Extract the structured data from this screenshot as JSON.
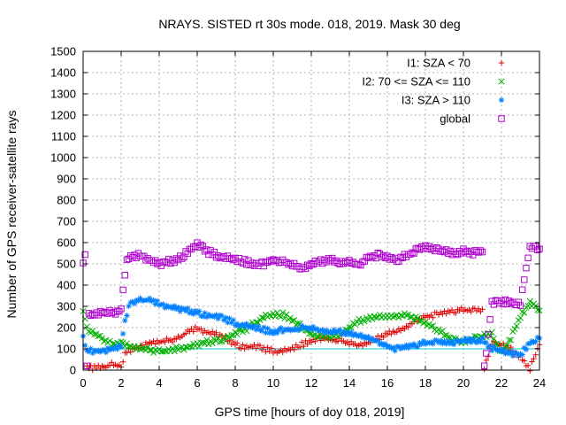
{
  "chart_data": {
    "type": "scatter",
    "title": "NRAYS. SISTED rt 30s mode. 018, 2019. Mask 30 deg",
    "xlabel": "GPS time [hours of doy 018, 2019]",
    "ylabel": "Number of GPS receiver-satellite rays",
    "xlim": [
      0,
      24
    ],
    "ylim": [
      0,
      1500
    ],
    "x_ticks": [
      0,
      2,
      4,
      6,
      8,
      10,
      12,
      14,
      16,
      18,
      20,
      22,
      24
    ],
    "y_ticks": [
      0,
      100,
      200,
      300,
      400,
      500,
      600,
      700,
      800,
      900,
      1000,
      1100,
      1200,
      1300,
      1400,
      1500
    ],
    "grid": true,
    "legend_position": "top-right",
    "reference_line": {
      "y": 100,
      "color": "#00c8d0"
    },
    "series": [
      {
        "name": "I1: SZA < 70",
        "marker": "+",
        "color": "#e00000",
        "x": [
          0.2,
          0.5,
          1.0,
          1.5,
          2.0,
          2.2,
          2.5,
          3.0,
          3.5,
          4.0,
          4.5,
          5.0,
          5.5,
          6.0,
          6.5,
          7.0,
          7.5,
          8.0,
          8.5,
          9.0,
          9.5,
          10.0,
          10.5,
          11.0,
          11.5,
          12.0,
          12.5,
          13.0,
          13.5,
          14.0,
          14.5,
          15.0,
          15.5,
          16.0,
          16.5,
          17.0,
          17.5,
          18.0,
          18.5,
          19.0,
          19.5,
          20.0,
          20.5,
          21.0,
          21.1,
          21.5,
          22.0,
          22.5,
          23.0,
          23.5,
          24.0
        ],
        "y": [
          10,
          10,
          12,
          25,
          15,
          80,
          95,
          110,
          130,
          130,
          140,
          150,
          180,
          195,
          180,
          170,
          150,
          120,
          110,
          110,
          100,
          90,
          90,
          100,
          120,
          140,
          150,
          145,
          140,
          130,
          120,
          130,
          150,
          170,
          180,
          200,
          230,
          250,
          260,
          270,
          280,
          285,
          280,
          280,
          10,
          130,
          120,
          100,
          60,
          5,
          120
        ]
      },
      {
        "name": "I2: 70 <= SZA <= 110",
        "marker": "x",
        "color": "#00b000",
        "x": [
          0.0,
          0.3,
          0.6,
          1.0,
          1.5,
          2.0,
          2.5,
          3.0,
          3.5,
          4.0,
          4.5,
          5.0,
          5.5,
          6.0,
          6.5,
          7.0,
          7.5,
          8.0,
          8.5,
          9.0,
          9.5,
          10.0,
          10.5,
          11.0,
          11.5,
          12.0,
          12.5,
          13.0,
          13.5,
          14.0,
          14.5,
          15.0,
          15.5,
          16.0,
          16.5,
          17.0,
          17.5,
          18.0,
          18.5,
          19.0,
          19.5,
          20.0,
          20.5,
          21.0,
          21.5,
          22.0,
          22.5,
          23.0,
          23.5,
          24.0
        ],
        "y": [
          270,
          180,
          170,
          150,
          120,
          130,
          110,
          100,
          95,
          90,
          90,
          100,
          110,
          120,
          130,
          140,
          150,
          170,
          190,
          220,
          250,
          260,
          260,
          240,
          200,
          170,
          160,
          160,
          170,
          200,
          230,
          240,
          250,
          250,
          250,
          260,
          240,
          220,
          200,
          170,
          140,
          130,
          150,
          160,
          170,
          80,
          150,
          250,
          320,
          280
        ]
      },
      {
        "name": "I3: SZA > 110",
        "marker": "*",
        "color": "#0080ff",
        "x": [
          0.0,
          0.2,
          0.5,
          1.0,
          1.5,
          2.0,
          2.2,
          2.5,
          3.0,
          3.5,
          4.0,
          4.5,
          5.0,
          5.5,
          6.0,
          6.5,
          7.0,
          7.5,
          8.0,
          8.5,
          9.0,
          9.5,
          10.0,
          10.5,
          11.0,
          11.5,
          12.0,
          12.5,
          13.0,
          13.5,
          14.0,
          14.5,
          15.0,
          15.5,
          16.0,
          16.5,
          17.0,
          17.5,
          18.0,
          18.5,
          19.0,
          19.5,
          20.0,
          20.5,
          21.0,
          21.5,
          22.0,
          22.5,
          23.0,
          23.5,
          24.0
        ],
        "y": [
          160,
          90,
          90,
          90,
          100,
          110,
          230,
          320,
          330,
          330,
          310,
          300,
          290,
          280,
          270,
          260,
          250,
          240,
          220,
          210,
          200,
          190,
          180,
          190,
          190,
          200,
          200,
          190,
          180,
          180,
          170,
          160,
          150,
          130,
          110,
          100,
          110,
          120,
          130,
          130,
          130,
          130,
          140,
          140,
          140,
          100,
          90,
          80,
          70,
          130,
          150
        ]
      },
      {
        "name": "global",
        "marker": "square",
        "color": "#b000d0",
        "x": [
          0.0,
          0.1,
          0.2,
          0.3,
          0.5,
          1.0,
          1.5,
          2.0,
          2.1,
          2.3,
          2.5,
          3.0,
          3.5,
          4.0,
          4.5,
          5.0,
          5.5,
          6.0,
          6.5,
          7.0,
          7.5,
          8.0,
          8.5,
          9.0,
          9.5,
          10.0,
          10.5,
          11.0,
          11.5,
          12.0,
          12.5,
          13.0,
          13.5,
          14.0,
          14.5,
          15.0,
          15.5,
          16.0,
          16.5,
          17.0,
          17.5,
          18.0,
          18.5,
          19.0,
          19.5,
          20.0,
          20.5,
          21.0,
          21.1,
          21.5,
          22.0,
          22.5,
          23.0,
          23.2,
          23.5,
          24.0
        ],
        "y": [
          500,
          540,
          30,
          260,
          260,
          270,
          270,
          280,
          380,
          520,
          530,
          540,
          520,
          500,
          510,
          520,
          560,
          590,
          560,
          540,
          530,
          520,
          510,
          500,
          500,
          520,
          510,
          500,
          480,
          500,
          510,
          520,
          500,
          510,
          490,
          530,
          540,
          530,
          520,
          540,
          560,
          580,
          570,
          560,
          550,
          560,
          550,
          560,
          10,
          320,
          320,
          320,
          310,
          430,
          580,
          570
        ]
      }
    ]
  }
}
